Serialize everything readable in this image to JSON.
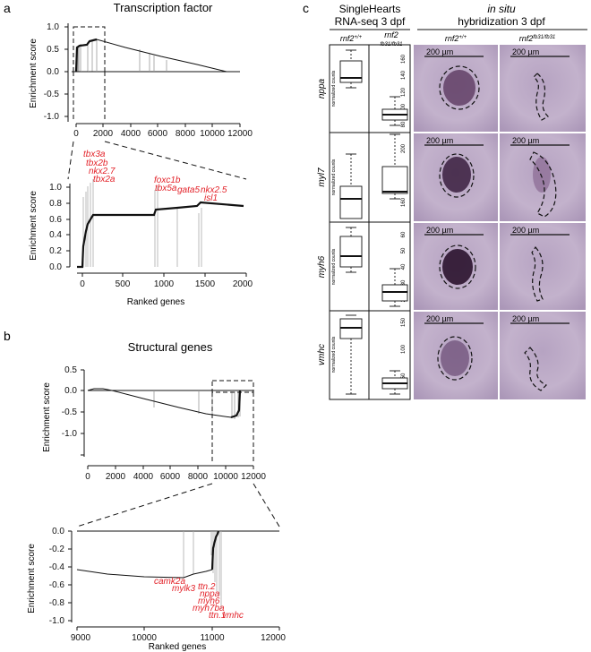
{
  "panel_labels": {
    "a": "a",
    "b": "b",
    "c": "c"
  },
  "panel_a": {
    "title": "Transcription factor",
    "ylabel": "Enrichment score",
    "top_x_ticks": [
      "0",
      "2000",
      "4000",
      "6000",
      "8000",
      "10000",
      "12000"
    ],
    "top_y_ticks": [
      "1.0",
      "0.5",
      "0.0",
      "-0.5",
      "-1.0"
    ],
    "zoom_xlabel": "Ranked genes",
    "zoom_x_ticks": [
      "0",
      "500",
      "1000",
      "1500",
      "2000"
    ],
    "zoom_y_ticks": [
      "1.0",
      "0.8",
      "0.6",
      "0.4",
      "0.2",
      "0.0"
    ],
    "gene_labels": [
      "tbx3a",
      "tbx2b",
      "nkx2.7",
      "tbx2a",
      "foxc1b",
      "tbx5a",
      "gata5",
      "nkx2.5",
      "isl1"
    ]
  },
  "panel_b": {
    "title": "Structural genes",
    "ylabel": "Enrichment score",
    "top_x_ticks": [
      "0",
      "2000",
      "4000",
      "6000",
      "8000",
      "10000",
      "12000"
    ],
    "top_y_ticks": [
      "0.5",
      "0.0",
      "-0.5",
      "-1.0"
    ],
    "zoom_xlabel": "Ranked genes",
    "zoom_x_ticks": [
      "9000",
      "10000",
      "11000",
      "12000"
    ],
    "zoom_y_ticks": [
      "0.0",
      "-0.2",
      "-0.4",
      "-0.6",
      "-0.8",
      "-1.0"
    ],
    "gene_labels": [
      "camk2a",
      "mylk3",
      "ttn.2",
      "nppa",
      "myh6",
      "myh7ba",
      "ttn.1",
      "vmhc"
    ]
  },
  "panel_c": {
    "header_left_1": "SingleHearts",
    "header_left_2": "RNA-seq 3 dpf",
    "header_right_1": "in situ",
    "header_right_2": "hybridization 3 dpf",
    "col_wt": "rnf2",
    "col_wt_sup": "+/+",
    "col_mut": "rnf2",
    "col_mut_sub": "fb31/fb31",
    "img_mut_sup": "fb31/fb31",
    "scale_label": "200 µm",
    "norm_label": "normalized counts",
    "rows": [
      {
        "gene": "nppa",
        "ticks": [
          "160",
          "140",
          "120",
          "100",
          "80"
        ]
      },
      {
        "gene": "myl7",
        "ticks": [
          "200",
          "180",
          "160"
        ]
      },
      {
        "gene": "myh6",
        "ticks": [
          "60",
          "50",
          "40",
          "30",
          "20"
        ]
      },
      {
        "gene": "vmhc",
        "ticks": [
          "150",
          "100",
          "50"
        ]
      }
    ]
  },
  "colors": {
    "gene_label": "#e3242b",
    "line": "#111111",
    "tissue": "#c6b6cf",
    "stain": "#3a1f3e"
  }
}
